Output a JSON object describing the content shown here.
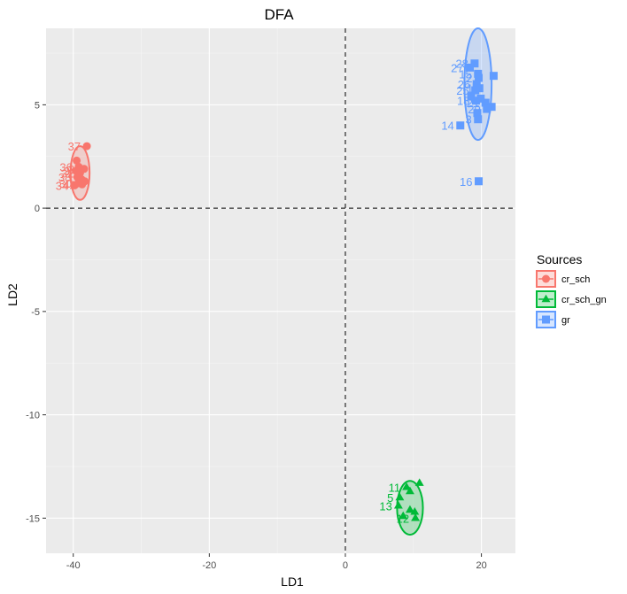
{
  "chart_data": {
    "type": "scatter",
    "title": "DFA",
    "xlabel": "LD1",
    "ylabel": "LD2",
    "xlim": [
      -44,
      25
    ],
    "ylim": [
      -16.7,
      8.7
    ],
    "xticks": [
      -40,
      -20,
      0,
      20
    ],
    "yticks": [
      -15,
      -10,
      -5,
      0,
      5
    ],
    "reference_lines": {
      "x": 0,
      "y": 0,
      "style": "dashed"
    },
    "grid": true,
    "legend": {
      "title": "Sources",
      "position": "right"
    },
    "series": [
      {
        "name": "cr_sch",
        "color": "#F8766D",
        "marker": "circle",
        "ellipse": {
          "cx": -39,
          "cy": 1.7,
          "rx": 1.4,
          "ry": 1.3
        },
        "points": [
          {
            "x": -38,
            "y": 3.0,
            "label": "37"
          },
          {
            "x": -39.5,
            "y": 2.3,
            "label": ""
          },
          {
            "x": -39.2,
            "y": 2.0,
            "label": "36"
          },
          {
            "x": -38.9,
            "y": 1.9,
            "label": "3"
          },
          {
            "x": -38.4,
            "y": 1.9,
            "label": ""
          },
          {
            "x": -39.6,
            "y": 1.8,
            "label": "3"
          },
          {
            "x": -39.0,
            "y": 1.7,
            "label": "32"
          },
          {
            "x": -39.4,
            "y": 1.5,
            "label": "38"
          },
          {
            "x": -38.8,
            "y": 1.4,
            "label": ""
          },
          {
            "x": -38.3,
            "y": 1.3,
            "label": ""
          },
          {
            "x": -39.3,
            "y": 1.2,
            "label": "30"
          },
          {
            "x": -38.7,
            "y": 1.15,
            "label": "42"
          },
          {
            "x": -39.8,
            "y": 1.1,
            "label": "34"
          }
        ]
      },
      {
        "name": "cr_sch_gn",
        "color": "#00BA38",
        "marker": "triangle",
        "ellipse": {
          "cx": 9.5,
          "cy": -14.5,
          "rx": 1.9,
          "ry": 1.3
        },
        "points": [
          {
            "x": 10.9,
            "y": -13.3,
            "label": ""
          },
          {
            "x": 9.0,
            "y": -13.5,
            "label": "11"
          },
          {
            "x": 9.5,
            "y": -13.7,
            "label": ""
          },
          {
            "x": 8.0,
            "y": -14.0,
            "label": "5"
          },
          {
            "x": 7.8,
            "y": -14.4,
            "label": "13"
          },
          {
            "x": 9.5,
            "y": -14.6,
            "label": ""
          },
          {
            "x": 10.2,
            "y": -14.7,
            "label": ""
          },
          {
            "x": 8.5,
            "y": -14.9,
            "label": ""
          },
          {
            "x": 10.3,
            "y": -15.0,
            "label": "12"
          }
        ]
      },
      {
        "name": "gr",
        "color": "#619CFF",
        "marker": "square",
        "ellipse": {
          "cx": 19.5,
          "cy": 6.0,
          "rx": 2.0,
          "ry": 2.7
        },
        "points": [
          {
            "x": 19.0,
            "y": 7.0,
            "label": "28"
          },
          {
            "x": 18.3,
            "y": 6.8,
            "label": "27"
          },
          {
            "x": 21.8,
            "y": 6.4,
            "label": ""
          },
          {
            "x": 19.5,
            "y": 6.5,
            "label": "15"
          },
          {
            "x": 19.6,
            "y": 6.3,
            "label": "2"
          },
          {
            "x": 19.3,
            "y": 6.0,
            "label": "26"
          },
          {
            "x": 19.7,
            "y": 5.8,
            "label": "1"
          },
          {
            "x": 19.1,
            "y": 5.7,
            "label": "25"
          },
          {
            "x": 18.5,
            "y": 5.4,
            "label": ""
          },
          {
            "x": 19.2,
            "y": 5.2,
            "label": "18"
          },
          {
            "x": 19.9,
            "y": 5.3,
            "label": ""
          },
          {
            "x": 20.6,
            "y": 5.1,
            "label": "21"
          },
          {
            "x": 21.5,
            "y": 4.9,
            "label": ""
          },
          {
            "x": 20.8,
            "y": 4.8,
            "label": "29"
          },
          {
            "x": 19.4,
            "y": 4.6,
            "label": ""
          },
          {
            "x": 19.5,
            "y": 4.3,
            "label": "3"
          },
          {
            "x": 16.9,
            "y": 4.0,
            "label": "14"
          },
          {
            "x": 19.6,
            "y": 1.3,
            "label": "16"
          }
        ]
      }
    ]
  }
}
